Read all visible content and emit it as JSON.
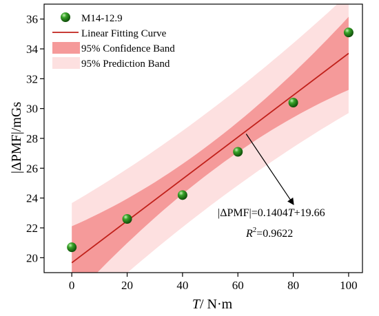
{
  "chart_data": {
    "type": "scatter",
    "xlabel_italic": "T",
    "xlabel_rest": "/ N·m",
    "ylabel": "|ΔPMF|/mGs",
    "xlim": [
      -10,
      105
    ],
    "ylim": [
      19,
      37
    ],
    "xticks": [
      0,
      20,
      40,
      60,
      80,
      100
    ],
    "yticks": [
      20,
      22,
      24,
      26,
      28,
      30,
      32,
      34,
      36
    ],
    "series": [
      {
        "name": "M14-12.9",
        "x": [
          0,
          20,
          40,
          60,
          80,
          100
        ],
        "y": [
          20.7,
          22.6,
          24.2,
          27.1,
          30.4,
          35.1
        ]
      }
    ],
    "fit": {
      "slope": 0.1404,
      "intercept": 19.66,
      "x_range": [
        0,
        100
      ]
    },
    "confidence_half_width": {
      "center_x": 50,
      "at_center": 0.95,
      "at_ends": 2.45
    },
    "prediction_half_width": {
      "center_x": 50,
      "at_center": 3.2,
      "at_ends": 4.0
    },
    "legend": {
      "position": "top-left",
      "entries": [
        "M14-12.9",
        "Linear Fitting Curve",
        "95% Confidence Band",
        "95% Prediction Band"
      ]
    },
    "annotation": {
      "equation_prefix": "|ΔPMF|=0.1404",
      "equation_var": "T",
      "equation_suffix": "+19.66",
      "r2_var": "R",
      "r2_sup": "2",
      "r2_value": "=0.9622",
      "arrow_from": [
        63,
        28.3
      ],
      "arrow_to": [
        80,
        23.6
      ]
    },
    "colors": {
      "marker": "#2e8b1e",
      "fit_line": "#c0201a",
      "confidence_band": "#f59a9a",
      "prediction_band": "#fde0e0"
    }
  }
}
